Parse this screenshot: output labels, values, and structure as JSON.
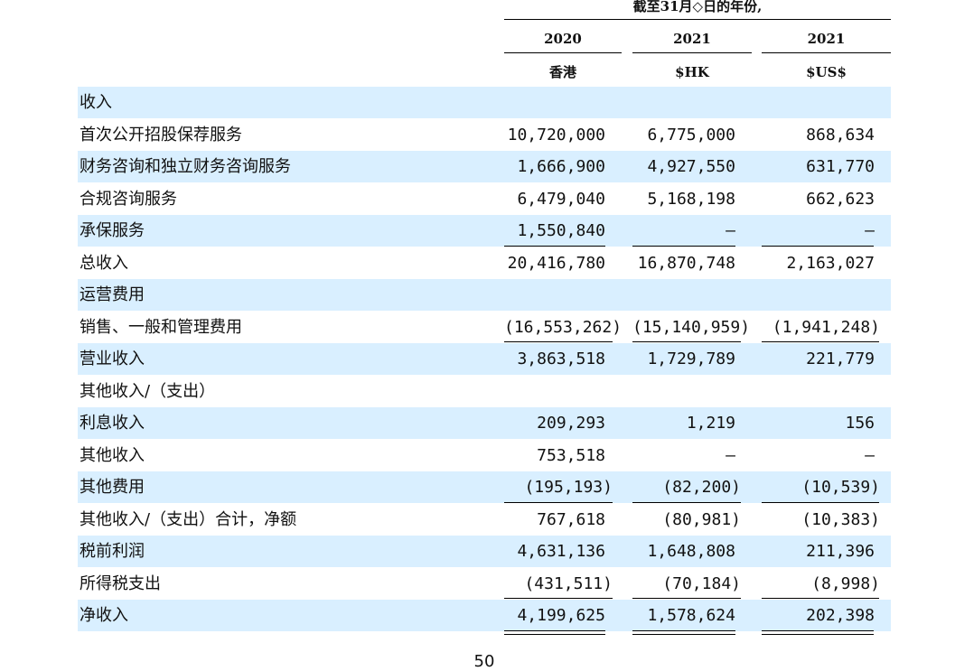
{
  "header": {
    "period_caption": "截至31月◇日的年份,",
    "columns": [
      {
        "year": "2020",
        "currency": "香港"
      },
      {
        "year": "2021",
        "currency": "$HK"
      },
      {
        "year": "2021",
        "currency": "$US$"
      }
    ]
  },
  "rows": [
    {
      "label": "收入",
      "values": [
        "",
        "",
        ""
      ]
    },
    {
      "label": "首次公开招股保荐服务",
      "values": [
        "10,720,000",
        "6,775,000",
        "868,634"
      ]
    },
    {
      "label": "财务咨询和独立财务咨询服务",
      "values": [
        "1,666,900",
        "4,927,550",
        "631,770"
      ]
    },
    {
      "label": "合规咨询服务",
      "values": [
        "6,479,040",
        "5,168,198",
        "662,623"
      ]
    },
    {
      "label": "承保服务",
      "values": [
        "1,550,840",
        "—",
        "—"
      ]
    },
    {
      "label": "总收入",
      "values": [
        "20,416,780",
        "16,870,748",
        "2,163,027"
      ]
    },
    {
      "label": "运营费用",
      "values": [
        "",
        "",
        ""
      ]
    },
    {
      "label": "销售、一般和管理费用",
      "values": [
        "(16,553,262)",
        "(15,140,959)",
        "(1,941,248)"
      ]
    },
    {
      "label": "营业收入",
      "values": [
        "3,863,518",
        "1,729,789",
        "221,779"
      ]
    },
    {
      "label": "其他收入/（支出）",
      "values": [
        "",
        "",
        ""
      ]
    },
    {
      "label": "利息收入",
      "values": [
        "209,293",
        "1,219",
        "156"
      ]
    },
    {
      "label": "其他收入",
      "values": [
        "753,518",
        "—",
        "—"
      ]
    },
    {
      "label": "其他费用",
      "values": [
        "(195,193)",
        "(82,200)",
        "(10,539)"
      ]
    },
    {
      "label": "其他收入/（支出）合计，净额",
      "values": [
        "767,618",
        "(80,981)",
        "(10,383)"
      ]
    },
    {
      "label": "税前利润",
      "values": [
        "4,631,136",
        "1,648,808",
        "211,396"
      ]
    },
    {
      "label": "所得税支出",
      "values": [
        "(431,511)",
        "(70,184)",
        "(8,998)"
      ]
    },
    {
      "label": "净收入",
      "values": [
        "4,199,625",
        "1,578,624",
        "202,398"
      ]
    }
  ],
  "page_number": "50"
}
